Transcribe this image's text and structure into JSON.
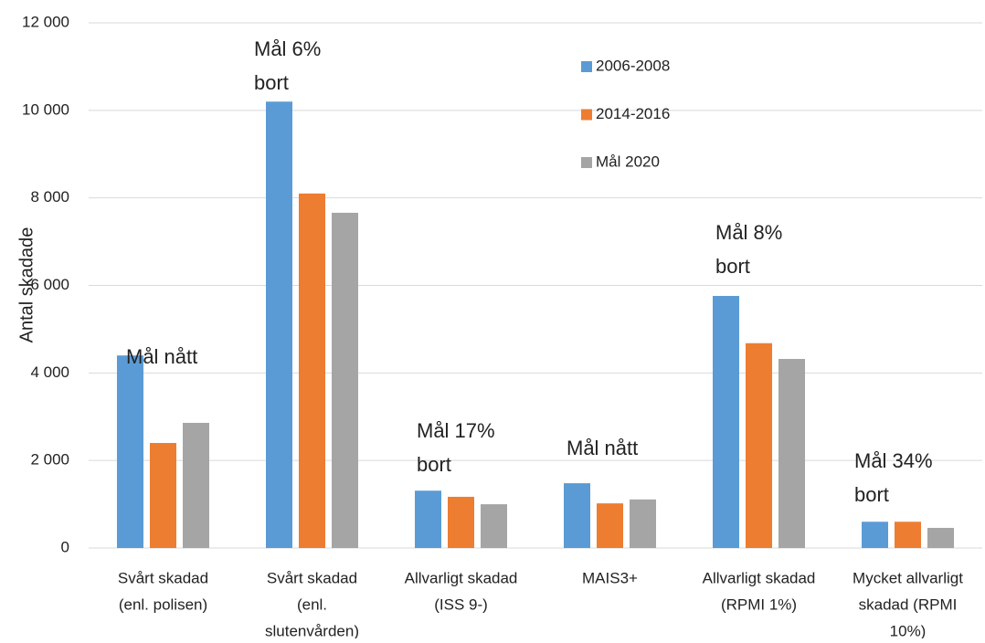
{
  "chart_data": {
    "type": "bar",
    "y_label": "Antal skadade",
    "categories": [
      [
        "Svårt skadad",
        "(enl. polisen)"
      ],
      [
        "Svårt skadad",
        "(enl.",
        "slutenvården)"
      ],
      [
        "Allvarligt skadad",
        "(ISS 9-)"
      ],
      [
        "MAIS3+"
      ],
      [
        "Allvarligt skadad",
        "(RPMI 1%)"
      ],
      [
        "Mycket allvarligt",
        "skadad (RPMI",
        "10%)"
      ]
    ],
    "series": [
      {
        "name": "2006-2008",
        "color": "#5b9bd5",
        "values": [
          4400,
          10200,
          1310,
          1480,
          5760,
          600
        ]
      },
      {
        "name": "2014-2016",
        "color": "#ed7d31",
        "values": [
          2400,
          8100,
          1170,
          1020,
          4680,
          600
        ]
      },
      {
        "name": "Mål 2020",
        "color": "#a5a5a5",
        "values": [
          2860,
          7660,
          1000,
          1110,
          4320,
          460
        ]
      }
    ],
    "annotations": [
      [
        "Mål nått"
      ],
      [
        "Mål 6%",
        "bort"
      ],
      [
        "Mål 17%",
        "bort"
      ],
      [
        "Mål nått"
      ],
      [
        "Mål 8%",
        "bort"
      ],
      [
        "Mål 34%",
        "bort"
      ]
    ],
    "ylim": [
      0,
      12000
    ],
    "yticks": [
      0,
      {
        "value": 2000,
        "label": "2 000"
      },
      {
        "value": 4000,
        "label": "4 000"
      },
      {
        "value": 6000,
        "label": "6 000"
      },
      {
        "value": 8000,
        "label": "8 000"
      },
      {
        "value": 10000,
        "label": "10 000"
      },
      {
        "value": 12000,
        "label": "12 000"
      }
    ],
    "grid": true,
    "legend": "upper-center"
  }
}
